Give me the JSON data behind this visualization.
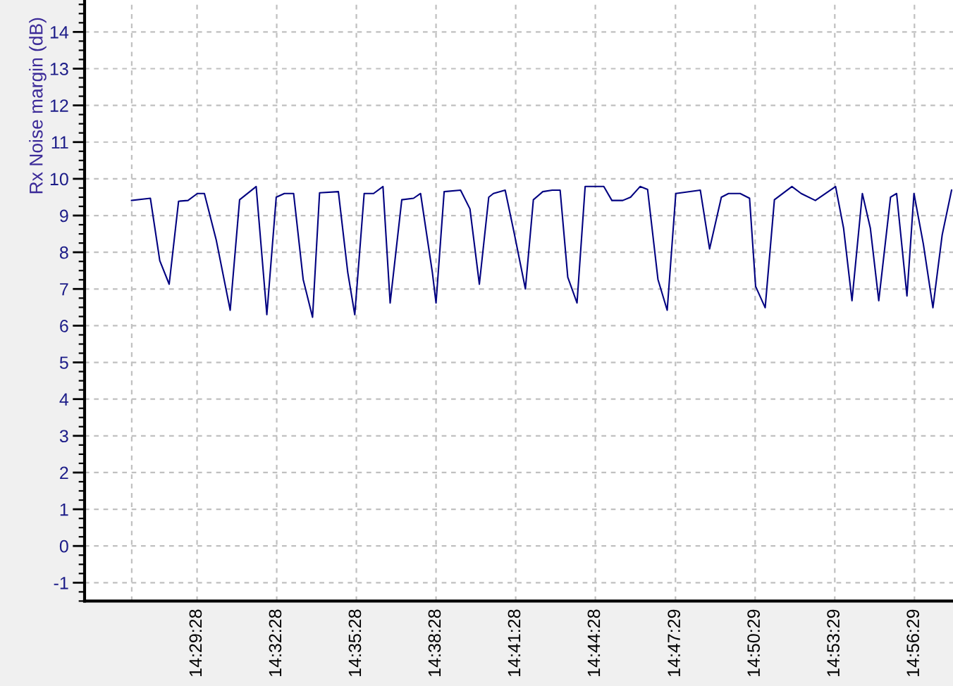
{
  "chart_data": {
    "type": "line",
    "ylabel": "Rx Noise margin (dB)",
    "x": [
      14.45,
      14.4618,
      14.4677,
      14.4736,
      14.4795,
      14.4854,
      14.4913,
      14.4957,
      14.5031,
      14.5119,
      14.5178,
      14.5282,
      14.5349,
      14.5408,
      14.5459,
      14.5517,
      14.5577,
      14.5636,
      14.568,
      14.5798,
      14.5857,
      14.5901,
      14.596,
      14.6019,
      14.6078,
      14.6123,
      14.6196,
      14.627,
      14.6314,
      14.6388,
      14.6411,
      14.6462,
      14.6565,
      14.6624,
      14.6683,
      14.6742,
      14.6771,
      14.6845,
      14.6904,
      14.6972,
      14.7022,
      14.7081,
      14.714,
      14.719,
      14.7238,
      14.7296,
      14.7347,
      14.7464,
      14.7515,
      14.7583,
      14.7632,
      14.7692,
      14.7739,
      14.7804,
      14.7862,
      14.7916,
      14.807,
      14.8128,
      14.8202,
      14.8247,
      14.832,
      14.8379,
      14.8417,
      14.8477,
      14.8535,
      14.8645,
      14.8703,
      14.8792,
      14.8919,
      14.8969,
      14.9022,
      14.9087,
      14.9137,
      14.919,
      14.9264,
      14.9302,
      14.9367,
      14.9411,
      14.947,
      14.953,
      14.9588,
      14.9647
    ],
    "values": [
      9.41,
      9.47,
      7.77,
      7.13,
      9.39,
      9.41,
      9.6,
      9.6,
      8.34,
      6.42,
      9.43,
      9.79,
      6.3,
      9.5,
      9.6,
      9.6,
      7.26,
      6.23,
      9.62,
      9.65,
      7.45,
      6.3,
      9.6,
      9.6,
      9.79,
      6.62,
      9.43,
      9.47,
      9.6,
      7.45,
      6.62,
      9.65,
      9.69,
      9.18,
      7.13,
      9.5,
      9.6,
      9.69,
      8.47,
      7.0,
      9.43,
      9.65,
      9.69,
      9.69,
      7.32,
      6.62,
      9.79,
      9.79,
      9.41,
      9.41,
      9.5,
      9.79,
      9.71,
      7.26,
      6.42,
      9.6,
      9.69,
      8.09,
      9.5,
      9.6,
      9.6,
      9.47,
      7.07,
      6.49,
      9.43,
      9.79,
      9.6,
      9.41,
      9.79,
      8.66,
      6.68,
      9.6,
      8.66,
      6.68,
      9.5,
      9.6,
      6.81,
      9.6,
      8.22,
      6.49,
      8.47,
      9.69
    ],
    "color": "#000080",
    "line_style": "solid",
    "xlim": [
      14.4205,
      14.9656
    ],
    "ylim": [
      -1.5,
      14.87
    ],
    "xticks": [
      {
        "value": 14.4501,
        "label": null
      },
      {
        "value": 14.4911,
        "label": "14:29:28"
      },
      {
        "value": 14.5411,
        "label": "14:32:28"
      },
      {
        "value": 14.5911,
        "label": "14:35:28"
      },
      {
        "value": 14.6411,
        "label": "14:38:28"
      },
      {
        "value": 14.6911,
        "label": "14:41:28"
      },
      {
        "value": 14.7411,
        "label": "14:44:28"
      },
      {
        "value": 14.7914,
        "label": "14:47:29"
      },
      {
        "value": 14.8414,
        "label": "14:50:29"
      },
      {
        "value": 14.8914,
        "label": "14:53:29"
      },
      {
        "value": 14.9414,
        "label": "14:56:29"
      }
    ],
    "yticks": [
      -1,
      0,
      1,
      2,
      3,
      4,
      5,
      6,
      7,
      8,
      9,
      10,
      11,
      12,
      13,
      14
    ],
    "grid": true
  }
}
